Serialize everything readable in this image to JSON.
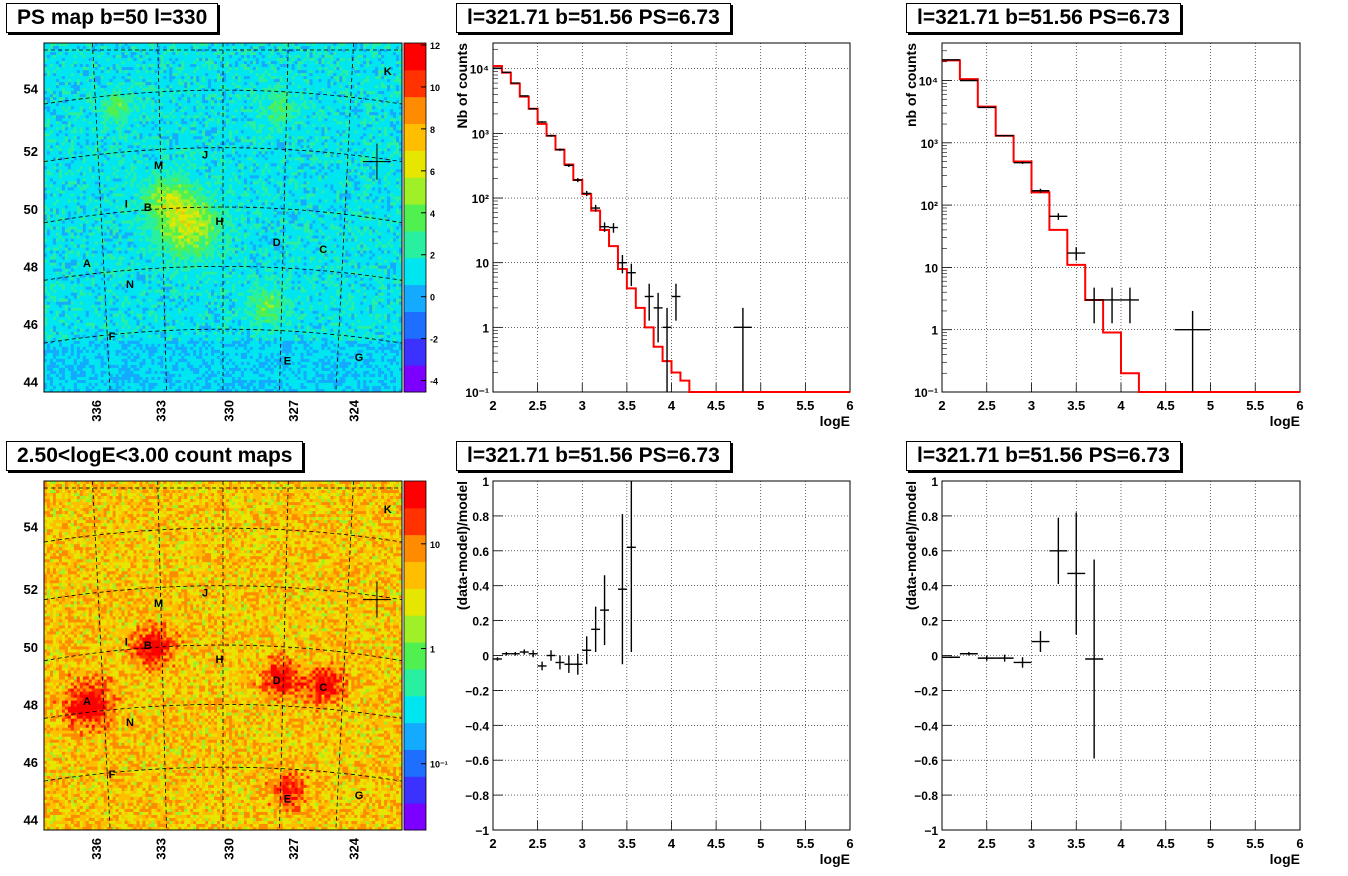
{
  "panels": {
    "map_top_title": "PS map b=50 l=330",
    "map_bottom_title": "2.50<logE<3.00 count maps",
    "spec1_title": "l=321.71 b=51.56 PS=6.73",
    "spec2_title": "l=321.71 b=51.56 PS=6.73",
    "res1_title": "l=321.71 b=51.56 PS=6.73",
    "res2_title": "l=321.71 b=51.56 PS=6.73"
  },
  "maps": {
    "y_ticks": [
      "44",
      "46",
      "48",
      "50",
      "52",
      "54"
    ],
    "x_ticks": [
      "336",
      "333",
      "330",
      "327",
      "324"
    ],
    "source_labels": [
      "K",
      "M",
      "J",
      "I",
      "B",
      "H",
      "D",
      "C",
      "A",
      "N",
      "F",
      "E",
      "G"
    ],
    "top_colorbar_ticks": [
      "12",
      "10",
      "8",
      "6",
      "4",
      "2",
      "0",
      "-2",
      "-4"
    ],
    "bottom_colorbar_ticks": [
      "10",
      "1",
      "10⁻¹"
    ],
    "palette": [
      "#7b00ff",
      "#3c32ff",
      "#1e6eff",
      "#14aaff",
      "#00e6f0",
      "#28f0a0",
      "#50f050",
      "#a0f028",
      "#e6e600",
      "#ffbe00",
      "#ff8c00",
      "#ff3200",
      "#ff0000"
    ]
  },
  "chart_data": [
    {
      "type": "line",
      "title": "l=321.71 b=51.56 PS=6.73",
      "xlabel": "logE",
      "ylabel": "Nb of counts",
      "xlim": [
        2,
        6
      ],
      "ylim": [
        0.1,
        25000
      ],
      "yscale": "log",
      "grid": true,
      "x_ticks": [
        "2",
        "2.5",
        "3",
        "3.5",
        "4",
        "4.5",
        "5",
        "5.5",
        "6"
      ],
      "y_ticks": [
        "10⁻¹",
        "1",
        "10",
        "10²",
        "10³",
        "10⁴"
      ],
      "model_color": "#ff0000",
      "model": {
        "bin_edges": [
          2.0,
          2.1,
          2.2,
          2.3,
          2.4,
          2.5,
          2.6,
          2.7,
          2.8,
          2.9,
          3.0,
          3.1,
          3.2,
          3.3,
          3.4,
          3.5,
          3.6,
          3.7,
          3.8,
          3.9,
          4.0,
          4.1,
          4.2,
          6.0
        ],
        "values": [
          11000,
          8700,
          5900,
          3700,
          2400,
          1400,
          920,
          560,
          330,
          190,
          115,
          64,
          32,
          18,
          8,
          4,
          2,
          1,
          0.5,
          0.3,
          0.2,
          0.15,
          0.1
        ]
      },
      "data": {
        "x": [
          2.05,
          2.15,
          2.25,
          2.35,
          2.45,
          2.55,
          2.65,
          2.75,
          2.85,
          2.95,
          3.05,
          3.15,
          3.25,
          3.35,
          3.45,
          3.55,
          3.75,
          3.85,
          3.95,
          4.05,
          4.8
        ],
        "y": [
          10200,
          8800,
          6000,
          3800,
          2400,
          1500,
          920,
          560,
          320,
          190,
          118,
          70,
          36,
          35,
          10,
          7,
          3,
          2,
          1,
          3,
          1
        ],
        "xerr": 0.05,
        "xerr_last": 0.1
      }
    },
    {
      "type": "line",
      "title": "l=321.71 b=51.56 PS=6.73",
      "xlabel": "logE",
      "ylabel": "nb of counts",
      "xlim": [
        2,
        6
      ],
      "ylim": [
        0.1,
        40000
      ],
      "yscale": "log",
      "grid": true,
      "x_ticks": [
        "2",
        "2.5",
        "3",
        "3.5",
        "4",
        "4.5",
        "5",
        "5.5",
        "6"
      ],
      "y_ticks": [
        "10⁻¹",
        "1",
        "10",
        "10²",
        "10³",
        "10⁴"
      ],
      "model_color": "#ff0000",
      "model": {
        "bin_edges": [
          2.0,
          2.2,
          2.4,
          2.6,
          2.8,
          3.0,
          3.2,
          3.4,
          3.6,
          3.8,
          4.0,
          4.2,
          6.0
        ],
        "values": [
          21000,
          10500,
          3800,
          1300,
          500,
          160,
          40,
          11,
          3,
          0.9,
          0.2,
          0.1
        ]
      },
      "data": {
        "x": [
          2.1,
          2.3,
          2.5,
          2.7,
          2.9,
          3.1,
          3.3,
          3.5,
          3.7,
          3.9,
          4.1,
          4.8
        ],
        "y": [
          21500,
          10000,
          3700,
          1300,
          480,
          170,
          66,
          17,
          3,
          3,
          3,
          1
        ],
        "xerr": 0.1,
        "xerr_last": 0.2
      }
    },
    {
      "type": "scatter",
      "title": "l=321.71 b=51.56 PS=6.73",
      "xlabel": "logE",
      "ylabel": "(data-model)/model",
      "xlim": [
        2,
        6
      ],
      "ylim": [
        -1,
        1
      ],
      "grid": true,
      "x_ticks": [
        "2",
        "2.5",
        "3",
        "3.5",
        "4",
        "4.5",
        "5",
        "5.5",
        "6"
      ],
      "y_ticks": [
        "−1",
        "−0.8",
        "−0.6",
        "−0.4",
        "−0.2",
        "0",
        "0.2",
        "0.4",
        "0.6",
        "0.8",
        "1"
      ],
      "data": {
        "x": [
          2.05,
          2.15,
          2.25,
          2.35,
          2.45,
          2.55,
          2.65,
          2.75,
          2.85,
          2.95,
          3.05,
          3.15,
          3.25,
          3.45,
          3.55
        ],
        "y": [
          -0.02,
          0.01,
          0.01,
          0.02,
          0.01,
          -0.06,
          0.0,
          -0.04,
          -0.05,
          -0.05,
          0.03,
          0.15,
          0.26,
          0.38,
          0.62
        ],
        "yerr": [
          0.01,
          0.01,
          0.01,
          0.015,
          0.02,
          0.025,
          0.03,
          0.04,
          0.05,
          0.06,
          0.08,
          0.13,
          0.2,
          0.43,
          0.6
        ],
        "xerr": 0.05
      }
    },
    {
      "type": "scatter",
      "title": "l=321.71 b=51.56 PS=6.73",
      "xlabel": "logE",
      "ylabel": "(data-model)/model",
      "xlim": [
        2,
        6
      ],
      "ylim": [
        -1,
        1
      ],
      "grid": true,
      "x_ticks": [
        "2",
        "2.5",
        "3",
        "3.5",
        "4",
        "4.5",
        "5",
        "5.5",
        "6"
      ],
      "y_ticks": [
        "−1",
        "−0.8",
        "−0.6",
        "−0.4",
        "−0.2",
        "0",
        "0.2",
        "0.4",
        "0.6",
        "0.8",
        "1"
      ],
      "data": {
        "x": [
          2.1,
          2.3,
          2.5,
          2.7,
          2.9,
          3.1,
          3.3,
          3.5,
          3.7
        ],
        "y": [
          -0.01,
          0.01,
          -0.015,
          -0.015,
          -0.04,
          0.08,
          0.6,
          0.47,
          -0.02
        ],
        "yerr": [
          0.005,
          0.01,
          0.015,
          0.02,
          0.03,
          0.06,
          0.19,
          0.35,
          0.57
        ],
        "xerr": 0.1
      }
    }
  ]
}
